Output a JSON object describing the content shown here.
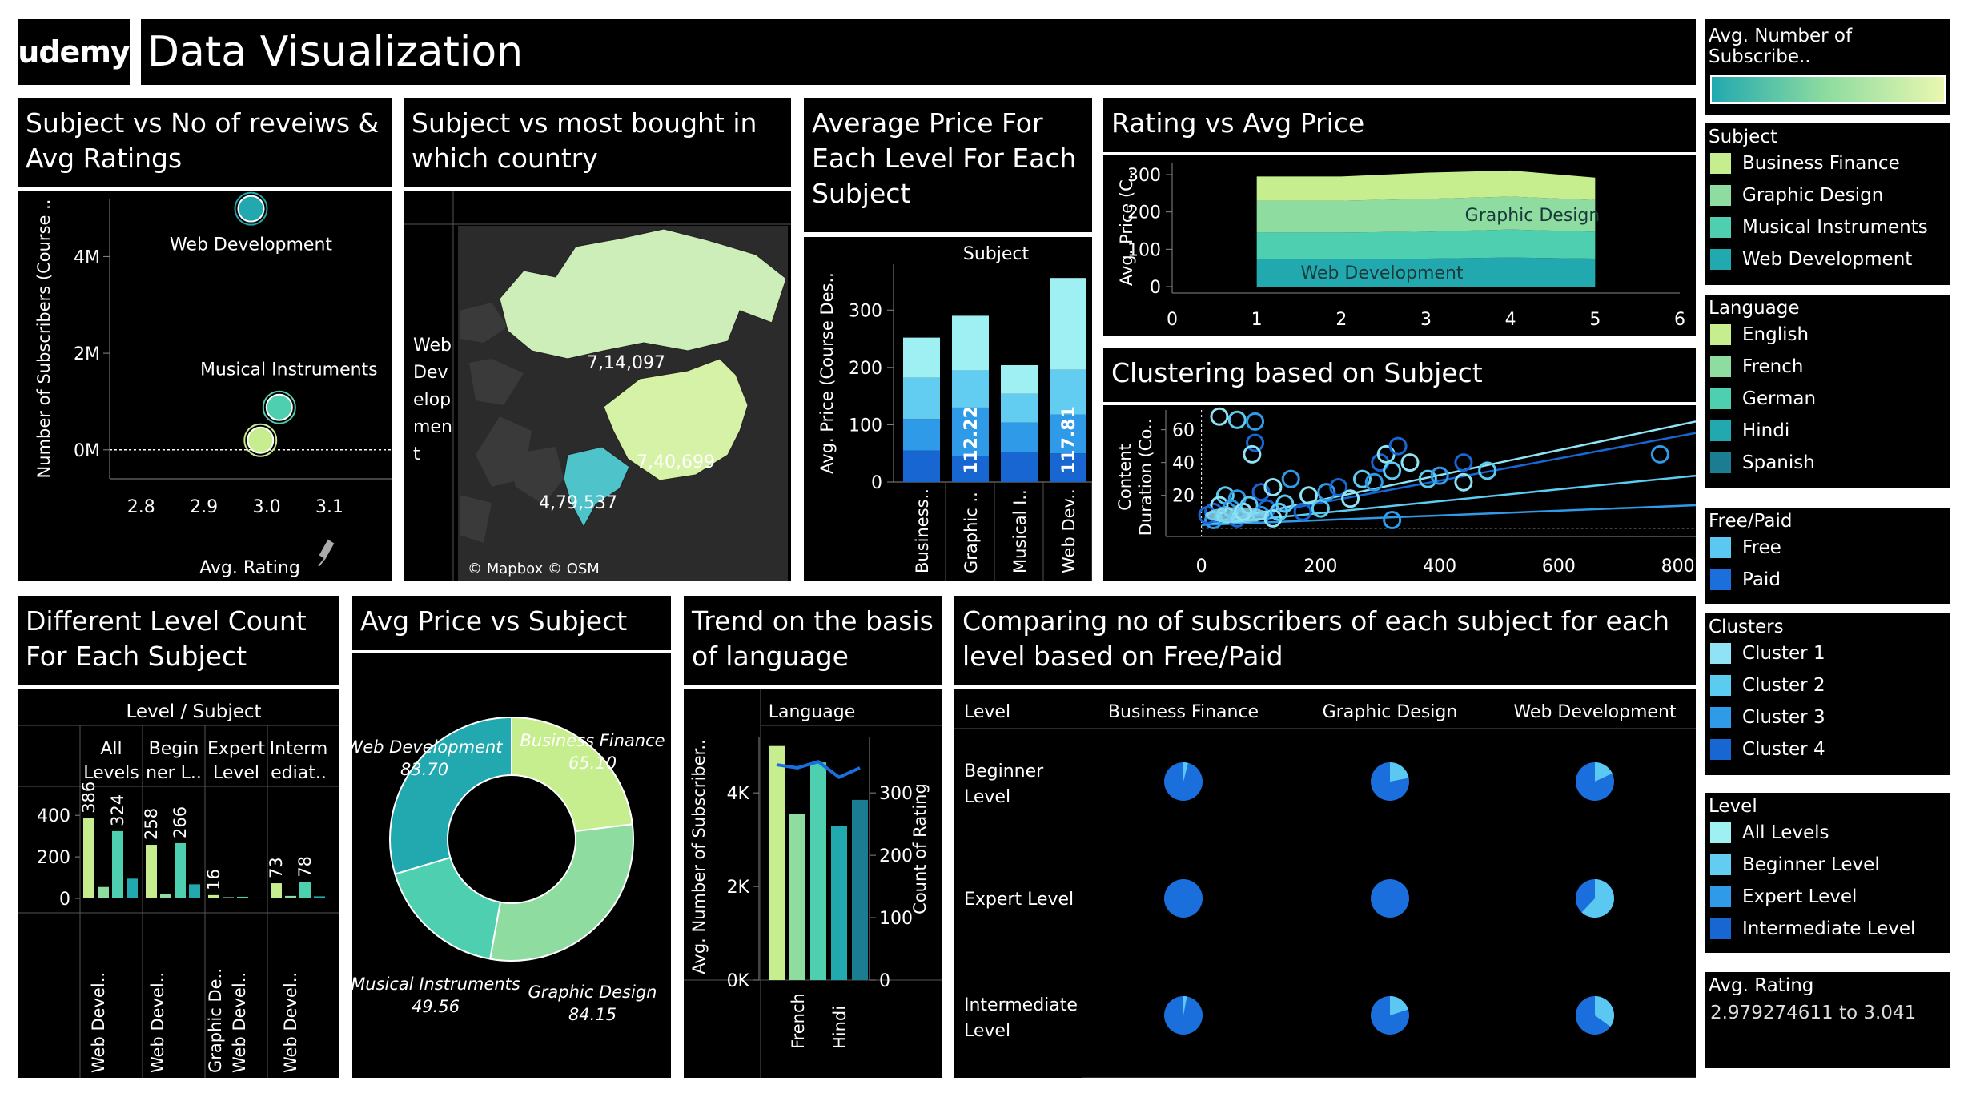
{
  "header": {
    "logo": "udemy",
    "title": "Data Visualization"
  },
  "titles": {
    "scatter": "Subject vs No of reveiws & Avg Ratings",
    "map": "Subject vs most bought in which country",
    "avgprice": "Average Price For Each Level For Each Subject",
    "rating_price": "Rating vs Avg Price",
    "cluster": "Clustering based on Subject",
    "levelcount": "Different Level Count For Each Subject",
    "donut": "Avg Price vs Subject",
    "trend": "Trend on the basis of language",
    "compare": "Comparing no of subscribers of each subject for each level based on Free/Paid"
  },
  "legends": {
    "gradient_title": "Avg. Number of Subscribe..",
    "subject": {
      "title": "Subject",
      "items": [
        {
          "label": "Business Finance",
          "color": "#c7ee8e"
        },
        {
          "label": "Graphic Design",
          "color": "#8fdca0"
        },
        {
          "label": "Musical Instruments",
          "color": "#4ecfb0"
        },
        {
          "label": "Web Development",
          "color": "#22a9b0"
        }
      ]
    },
    "language": {
      "title": "Language",
      "items": [
        {
          "label": "English",
          "color": "#c7ee8e"
        },
        {
          "label": "French",
          "color": "#8fdca0"
        },
        {
          "label": "German",
          "color": "#4ecfb0"
        },
        {
          "label": "Hindi",
          "color": "#22a9b0"
        },
        {
          "label": "Spanish",
          "color": "#1b7d91"
        }
      ]
    },
    "freepaid": {
      "title": "Free/Paid",
      "items": [
        {
          "label": "Free",
          "color": "#5bc8f2"
        },
        {
          "label": "Paid",
          "color": "#1a6fdc"
        }
      ]
    },
    "clusters": {
      "title": "Clusters",
      "items": [
        {
          "label": "Cluster 1",
          "color": "#8fe3f5"
        },
        {
          "label": "Cluster 2",
          "color": "#5bcbf0"
        },
        {
          "label": "Cluster 3",
          "color": "#2f9be8"
        },
        {
          "label": "Cluster 4",
          "color": "#1866d2"
        }
      ]
    },
    "level": {
      "title": "Level",
      "items": [
        {
          "label": "All Levels",
          "color": "#9ef0f2"
        },
        {
          "label": "Beginner Level",
          "color": "#62cdf0"
        },
        {
          "label": "Expert Level",
          "color": "#2f9ae8"
        },
        {
          "label": "Intermediate Level",
          "color": "#1866d2"
        }
      ]
    },
    "rating": {
      "title": "Avg. Rating",
      "value": "2.979274611 to 3.041"
    }
  },
  "chart_data": [
    {
      "id": "scatter",
      "type": "scatter",
      "xlabel": "Avg. Rating",
      "ylabel": "Number of Subscribers (Course ..",
      "xlim": [
        2.75,
        3.2
      ],
      "ylim": [
        -0.6,
        5.2
      ],
      "xticks": [
        "2.8",
        "2.9",
        "3.0",
        "3.1"
      ],
      "yticks": [
        "0M",
        "2M",
        "4M"
      ],
      "points": [
        {
          "label": "Web Development",
          "x": 2.975,
          "y": 4.99,
          "color": "#22a9b0"
        },
        {
          "label": "Musical Instruments",
          "x": 3.02,
          "y": 0.88,
          "color": "#4ecfb0"
        },
        {
          "label": "",
          "x": 2.99,
          "y": 0.2,
          "color": "#c7ee8e"
        }
      ]
    },
    {
      "id": "map",
      "type": "map",
      "category": "Web Development",
      "regions": [
        {
          "name": "Russia",
          "value": "7,14,097",
          "color": "#cdeeb8"
        },
        {
          "name": "China",
          "value": "7,40,699",
          "color": "#d6f2a7"
        },
        {
          "name": "India",
          "value": "4,79,537",
          "color": "#4ec3c9"
        }
      ],
      "credit": "© Mapbox © OSM"
    },
    {
      "id": "avgprice",
      "type": "bar",
      "stacked": true,
      "header": "Subject",
      "ylabel": "Avg. Price (Course Des..",
      "ylim": [
        0,
        380
      ],
      "yticks": [
        "0",
        "100",
        "200",
        "300"
      ],
      "categories": [
        "Business..",
        "Graphic ..",
        "Musical I..",
        "Web Dev.."
      ],
      "series": [
        {
          "name": "Intermediate Level",
          "color": "#1866d2",
          "values": [
            55,
            45,
            52,
            50
          ]
        },
        {
          "name": "Expert Level",
          "color": "#2f9ae8",
          "values": [
            55,
            85,
            52,
            68
          ]
        },
        {
          "name": "Beginner Level",
          "color": "#62cdf0",
          "values": [
            72,
            65,
            50,
            78
          ]
        },
        {
          "name": "All Levels",
          "color": "#9ef0f2",
          "values": [
            70,
            95,
            50,
            160
          ]
        }
      ],
      "labels": [
        {
          "index": 1,
          "text": "112.22"
        },
        {
          "index": 3,
          "text": "117.81"
        }
      ]
    },
    {
      "id": "rating_price",
      "type": "area",
      "ylabel": "Avg. Price (C..",
      "xlim": [
        0,
        6
      ],
      "ylim": [
        0,
        330
      ],
      "xticks": [
        "0",
        "1",
        "2",
        "3",
        "4",
        "5",
        "6"
      ],
      "yticks": [
        "0",
        "100",
        "200",
        "300"
      ],
      "x": [
        1,
        2,
        3,
        4,
        5
      ],
      "series": [
        {
          "name": "Web Development",
          "color": "#22a9b0",
          "values": [
            75,
            75,
            75,
            78,
            75
          ]
        },
        {
          "name": "Musical Instruments",
          "color": "#4ecfb0",
          "values": [
            70,
            70,
            72,
            75,
            72
          ]
        },
        {
          "name": "Graphic Design",
          "color": "#8fdca0",
          "values": [
            85,
            85,
            88,
            88,
            85
          ]
        },
        {
          "name": "Business Finance",
          "color": "#c7ee8e",
          "values": [
            65,
            65,
            70,
            70,
            60
          ]
        }
      ],
      "annotations": [
        "Graphic Design",
        "Web Development"
      ]
    },
    {
      "id": "cluster",
      "type": "scatter",
      "ylabel": "Content Duration (Co..",
      "xlim": [
        -60,
        830
      ],
      "ylim": [
        -5,
        72
      ],
      "xticks": [
        "0",
        "200",
        "400",
        "600",
        "800"
      ],
      "yticks": [
        "20",
        "40",
        "60"
      ]
    },
    {
      "id": "levelcount",
      "type": "bar",
      "header": "Level / Subject",
      "ylim": [
        0,
        470
      ],
      "yticks": [
        "0",
        "200",
        "400"
      ],
      "groups": [
        {
          "label": [
            "All",
            "Levels"
          ],
          "values": [
            386,
            55,
            324,
            95
          ],
          "labels": [
            "386",
            "",
            "324",
            ""
          ]
        },
        {
          "label": [
            "Begin",
            "ner L.."
          ],
          "values": [
            258,
            22,
            266,
            68
          ],
          "labels": [
            "258",
            "",
            "266",
            ""
          ]
        },
        {
          "label": [
            "Expert",
            "Level"
          ],
          "values": [
            16,
            6,
            8,
            4
          ],
          "labels": [
            "16",
            "",
            "",
            ""
          ]
        },
        {
          "label": [
            "Interm",
            "ediat.."
          ],
          "values": [
            73,
            12,
            78,
            10
          ],
          "labels": [
            "73",
            "",
            "78",
            ""
          ]
        }
      ],
      "bar_colors": [
        "#c7ee8e",
        "#8fdca0",
        "#4ecfb0",
        "#22a9b0"
      ],
      "subject_labels": [
        "Web Devel..",
        "Web Devel..",
        "Graphic De..",
        "Web Devel..",
        "Web Devel.."
      ]
    },
    {
      "id": "donut",
      "type": "pie",
      "slices": [
        {
          "name": "Business Finance",
          "value": 65.1,
          "color": "#c7ee8e",
          "label": "65.10"
        },
        {
          "name": "Graphic Design",
          "value": 84.15,
          "color": "#8fdca0",
          "label": "84.15"
        },
        {
          "name": "Musical Instruments",
          "value": 49.56,
          "color": "#4ecfb0",
          "label": "49.56"
        },
        {
          "name": "Web Development",
          "value": 83.7,
          "color": "#22a9b0",
          "label": "83.70"
        }
      ]
    },
    {
      "id": "trend",
      "type": "bar",
      "header": "Language",
      "ylabel": "Avg. Number of Subscriber..",
      "ylabel2": "Count of Rating",
      "ylim": [
        0,
        5200
      ],
      "yticks": [
        "0K",
        "2K",
        "4K"
      ],
      "ylim2": [
        0,
        390
      ],
      "yticks2": [
        "0",
        "100",
        "200",
        "300"
      ],
      "categories": [
        "English",
        "French",
        "German",
        "Hindi",
        "Spanish"
      ],
      "tick_labels": [
        "",
        "French",
        "",
        "Hindi",
        ""
      ],
      "values": [
        5000,
        3550,
        4650,
        3300,
        3850
      ],
      "colors": [
        "#c7ee8e",
        "#8fdca0",
        "#4ecfb0",
        "#22a9b0",
        "#1b7d91"
      ],
      "line_values": [
        345,
        340,
        350,
        325,
        340
      ]
    },
    {
      "id": "compare",
      "type": "pie",
      "columns": [
        "Business Finance",
        "Graphic Design",
        "Web Development"
      ],
      "rows": [
        "Beginner Level",
        "Expert Level",
        "Intermediate Level"
      ],
      "level_header": "Level",
      "free_share": [
        [
          0.04,
          0.22,
          0.18
        ],
        [
          0.0,
          0.0,
          0.62
        ],
        [
          0.03,
          0.2,
          0.35
        ]
      ]
    }
  ]
}
